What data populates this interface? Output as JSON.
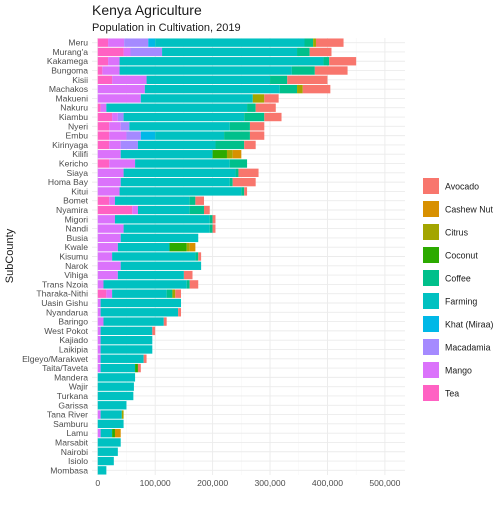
{
  "chart_data": {
    "type": "bar",
    "orientation": "horizontal",
    "stacked": true,
    "title": "Kenya Agriculture",
    "subtitle": "Population in Cultivation, 2019",
    "xlabel": "",
    "ylabel": "SubCounty",
    "xlim": [
      -10000,
      535000
    ],
    "x_ticks": [
      0,
      100000,
      200000,
      300000,
      400000,
      500000
    ],
    "x_tick_labels": [
      "0",
      "100,000",
      "200,000",
      "300,000",
      "400,000",
      "500,000"
    ],
    "grid": true,
    "legend_position": "right",
    "series": [
      {
        "name": "Tea",
        "color": "#FF61C3"
      },
      {
        "name": "Mango",
        "color": "#DB72FB"
      },
      {
        "name": "Macadamia",
        "color": "#A58AFF"
      },
      {
        "name": "Khat (Miraa)",
        "color": "#00B8E7"
      },
      {
        "name": "Farming",
        "color": "#00C1C1"
      },
      {
        "name": "Coffee",
        "color": "#00C08B"
      },
      {
        "name": "Coconut",
        "color": "#2CAA00"
      },
      {
        "name": "Citrus",
        "color": "#A3A500"
      },
      {
        "name": "Cashew Nut",
        "color": "#D89000"
      },
      {
        "name": "Avocado",
        "color": "#F8766D"
      }
    ],
    "legend_order": [
      "Avocado",
      "Cashew Nut",
      "Citrus",
      "Coconut",
      "Coffee",
      "Farming",
      "Khat (Miraa)",
      "Macadamia",
      "Mango",
      "Tea"
    ],
    "categories": [
      "Meru",
      "Murang'a",
      "Kakamega",
      "Bungoma",
      "Kisii",
      "Machakos",
      "Makueni",
      "Nakuru",
      "Kiambu",
      "Nyeri",
      "Embu",
      "Kirinyaga",
      "Kilifi",
      "Kericho",
      "Siaya",
      "Homa Bay",
      "Kitui",
      "Bomet",
      "Nyamira",
      "Migori",
      "Nandi",
      "Busia",
      "Kwale",
      "Kisumu",
      "Narok",
      "Vihiga",
      "Trans Nzoia",
      "Tharaka-Nithi",
      "Uasin Gishu",
      "Nyandarua",
      "Baringo",
      "West Pokot",
      "Kajiado",
      "Laikipia",
      "Elgeyo/Marakwet",
      "Taita/Taveta",
      "Mandera",
      "Wajir",
      "Turkana",
      "Garissa",
      "Tana River",
      "Samburu",
      "Lamu",
      "Marsabit",
      "Nairobi",
      "Isiolo",
      "Mombasa"
    ],
    "rows": [
      {
        "Tea": 18000,
        "Mango": 28000,
        "Macadamia": 42000,
        "Khat (Miraa)": 12000,
        "Farming": 260000,
        "Coffee": 15000,
        "Coconut": 0,
        "Citrus": 5000,
        "Cashew Nut": 0,
        "Avocado": 48000
      },
      {
        "Tea": 45000,
        "Mango": 12000,
        "Macadamia": 55000,
        "Khat (Miraa)": 0,
        "Farming": 235000,
        "Coffee": 22000,
        "Coconut": 0,
        "Citrus": 0,
        "Cashew Nut": 0,
        "Avocado": 38000
      },
      {
        "Tea": 18000,
        "Mango": 20000,
        "Macadamia": 0,
        "Khat (Miraa)": 0,
        "Farming": 355000,
        "Coffee": 10000,
        "Coconut": 0,
        "Citrus": 0,
        "Cashew Nut": 0,
        "Avocado": 47000
      },
      {
        "Tea": 8000,
        "Mango": 30000,
        "Macadamia": 0,
        "Khat (Miraa)": 0,
        "Farming": 300000,
        "Coffee": 40000,
        "Coconut": 0,
        "Citrus": 0,
        "Cashew Nut": 0,
        "Avocado": 57000
      },
      {
        "Tea": 25000,
        "Mango": 60000,
        "Macadamia": 0,
        "Khat (Miraa)": 0,
        "Farming": 215000,
        "Coffee": 30000,
        "Coconut": 0,
        "Citrus": 0,
        "Cashew Nut": 0,
        "Avocado": 70000
      },
      {
        "Tea": 0,
        "Mango": 82000,
        "Macadamia": 0,
        "Khat (Miraa)": 0,
        "Farming": 235000,
        "Coffee": 30000,
        "Coconut": 0,
        "Citrus": 10000,
        "Cashew Nut": 0,
        "Avocado": 48000
      },
      {
        "Tea": 0,
        "Mango": 75000,
        "Macadamia": 0,
        "Khat (Miraa)": 0,
        "Farming": 195000,
        "Coffee": 0,
        "Coconut": 0,
        "Citrus": 20000,
        "Cashew Nut": 0,
        "Avocado": 25000
      },
      {
        "Tea": 5000,
        "Mango": 10000,
        "Macadamia": 0,
        "Khat (Miraa)": 0,
        "Farming": 245000,
        "Coffee": 15000,
        "Coconut": 0,
        "Citrus": 0,
        "Cashew Nut": 0,
        "Avocado": 35000
      },
      {
        "Tea": 25000,
        "Mango": 10000,
        "Macadamia": 10000,
        "Khat (Miraa)": 0,
        "Farming": 210000,
        "Coffee": 35000,
        "Coconut": 0,
        "Citrus": 0,
        "Cashew Nut": 0,
        "Avocado": 30000
      },
      {
        "Tea": 20000,
        "Mango": 20000,
        "Macadamia": 15000,
        "Khat (Miraa)": 0,
        "Farming": 175000,
        "Coffee": 35000,
        "Coconut": 0,
        "Citrus": 0,
        "Cashew Nut": 0,
        "Avocado": 25000
      },
      {
        "Tea": 20000,
        "Mango": 30000,
        "Macadamia": 25000,
        "Khat (Miraa)": 25000,
        "Farming": 120000,
        "Coffee": 45000,
        "Coconut": 0,
        "Citrus": 0,
        "Cashew Nut": 0,
        "Avocado": 25000
      },
      {
        "Tea": 20000,
        "Mango": 20000,
        "Macadamia": 30000,
        "Khat (Miraa)": 0,
        "Farming": 135000,
        "Coffee": 50000,
        "Coconut": 0,
        "Citrus": 0,
        "Cashew Nut": 0,
        "Avocado": 20000
      },
      {
        "Tea": 0,
        "Mango": 40000,
        "Macadamia": 0,
        "Khat (Miraa)": 0,
        "Farming": 160000,
        "Coffee": 0,
        "Coconut": 25000,
        "Citrus": 10000,
        "Cashew Nut": 15000,
        "Avocado": 0
      },
      {
        "Tea": 20000,
        "Mango": 45000,
        "Macadamia": 0,
        "Khat (Miraa)": 0,
        "Farming": 165000,
        "Coffee": 30000,
        "Coconut": 0,
        "Citrus": 0,
        "Cashew Nut": 0,
        "Avocado": 0
      },
      {
        "Tea": 0,
        "Mango": 45000,
        "Macadamia": 0,
        "Khat (Miraa)": 0,
        "Farming": 195000,
        "Coffee": 5000,
        "Coconut": 0,
        "Citrus": 0,
        "Cashew Nut": 0,
        "Avocado": 35000
      },
      {
        "Tea": 0,
        "Mango": 40000,
        "Macadamia": 0,
        "Khat (Miraa)": 0,
        "Farming": 190000,
        "Coffee": 5000,
        "Coconut": 0,
        "Citrus": 0,
        "Cashew Nut": 0,
        "Avocado": 40000
      },
      {
        "Tea": 0,
        "Mango": 38000,
        "Macadamia": 0,
        "Khat (Miraa)": 0,
        "Farming": 212000,
        "Coffee": 5000,
        "Coconut": 0,
        "Citrus": 0,
        "Cashew Nut": 0,
        "Avocado": 5000
      },
      {
        "Tea": 20000,
        "Mango": 10000,
        "Macadamia": 0,
        "Khat (Miraa)": 0,
        "Farming": 130000,
        "Coffee": 10000,
        "Coconut": 0,
        "Citrus": 0,
        "Cashew Nut": 0,
        "Avocado": 15000
      },
      {
        "Tea": 60000,
        "Mango": 10000,
        "Macadamia": 0,
        "Khat (Miraa)": 0,
        "Farming": 90000,
        "Coffee": 25000,
        "Coconut": 0,
        "Citrus": 0,
        "Cashew Nut": 0,
        "Avocado": 10000
      },
      {
        "Tea": 0,
        "Mango": 30000,
        "Macadamia": 0,
        "Khat (Miraa)": 0,
        "Farming": 165000,
        "Coffee": 5000,
        "Coconut": 0,
        "Citrus": 0,
        "Cashew Nut": 0,
        "Avocado": 5000
      },
      {
        "Tea": 0,
        "Mango": 45000,
        "Macadamia": 0,
        "Khat (Miraa)": 0,
        "Farming": 150000,
        "Coffee": 5000,
        "Coconut": 0,
        "Citrus": 0,
        "Cashew Nut": 0,
        "Avocado": 5000
      },
      {
        "Tea": 0,
        "Mango": 40000,
        "Macadamia": 0,
        "Khat (Miraa)": 0,
        "Farming": 135000,
        "Coffee": 0,
        "Coconut": 0,
        "Citrus": 0,
        "Cashew Nut": 0,
        "Avocado": 0
      },
      {
        "Tea": 0,
        "Mango": 35000,
        "Macadamia": 0,
        "Khat (Miraa)": 0,
        "Farming": 90000,
        "Coffee": 0,
        "Coconut": 30000,
        "Citrus": 5000,
        "Cashew Nut": 10000,
        "Avocado": 0
      },
      {
        "Tea": 0,
        "Mango": 25000,
        "Macadamia": 0,
        "Khat (Miraa)": 0,
        "Farming": 145000,
        "Coffee": 5000,
        "Coconut": 0,
        "Citrus": 0,
        "Cashew Nut": 0,
        "Avocado": 5000
      },
      {
        "Tea": 0,
        "Mango": 40000,
        "Macadamia": 0,
        "Khat (Miraa)": 0,
        "Farming": 140000,
        "Coffee": 0,
        "Coconut": 0,
        "Citrus": 0,
        "Cashew Nut": 0,
        "Avocado": 0
      },
      {
        "Tea": 0,
        "Mango": 35000,
        "Macadamia": 0,
        "Khat (Miraa)": 0,
        "Farming": 115000,
        "Coffee": 0,
        "Coconut": 0,
        "Citrus": 0,
        "Cashew Nut": 0,
        "Avocado": 15000
      },
      {
        "Tea": 0,
        "Mango": 10000,
        "Macadamia": 0,
        "Khat (Miraa)": 0,
        "Farming": 145000,
        "Coffee": 5000,
        "Coconut": 0,
        "Citrus": 0,
        "Cashew Nut": 0,
        "Avocado": 15000
      },
      {
        "Tea": 15000,
        "Mango": 10000,
        "Macadamia": 0,
        "Khat (Miraa)": 0,
        "Farming": 95000,
        "Coffee": 10000,
        "Coconut": 0,
        "Citrus": 5000,
        "Cashew Nut": 0,
        "Avocado": 10000
      },
      {
        "Tea": 0,
        "Mango": 5000,
        "Macadamia": 0,
        "Khat (Miraa)": 0,
        "Farming": 140000,
        "Coffee": 0,
        "Coconut": 0,
        "Citrus": 0,
        "Cashew Nut": 0,
        "Avocado": 0
      },
      {
        "Tea": 0,
        "Mango": 5000,
        "Macadamia": 0,
        "Khat (Miraa)": 0,
        "Farming": 135000,
        "Coffee": 0,
        "Coconut": 0,
        "Citrus": 0,
        "Cashew Nut": 0,
        "Avocado": 5000
      },
      {
        "Tea": 0,
        "Mango": 10000,
        "Macadamia": 0,
        "Khat (Miraa)": 0,
        "Farming": 105000,
        "Coffee": 0,
        "Coconut": 0,
        "Citrus": 0,
        "Cashew Nut": 0,
        "Avocado": 5000
      },
      {
        "Tea": 0,
        "Mango": 5000,
        "Macadamia": 0,
        "Khat (Miraa)": 0,
        "Farming": 90000,
        "Coffee": 0,
        "Coconut": 0,
        "Citrus": 0,
        "Cashew Nut": 0,
        "Avocado": 5000
      },
      {
        "Tea": 0,
        "Mango": 5000,
        "Macadamia": 0,
        "Khat (Miraa)": 0,
        "Farming": 90000,
        "Coffee": 0,
        "Coconut": 0,
        "Citrus": 0,
        "Cashew Nut": 0,
        "Avocado": 0
      },
      {
        "Tea": 0,
        "Mango": 5000,
        "Macadamia": 0,
        "Khat (Miraa)": 0,
        "Farming": 90000,
        "Coffee": 0,
        "Coconut": 0,
        "Citrus": 0,
        "Cashew Nut": 0,
        "Avocado": 0
      },
      {
        "Tea": 0,
        "Mango": 5000,
        "Macadamia": 0,
        "Khat (Miraa)": 0,
        "Farming": 75000,
        "Coffee": 0,
        "Coconut": 0,
        "Citrus": 0,
        "Cashew Nut": 0,
        "Avocado": 5000
      },
      {
        "Tea": 0,
        "Mango": 5000,
        "Macadamia": 0,
        "Khat (Miraa)": 0,
        "Farming": 60000,
        "Coffee": 0,
        "Coconut": 5000,
        "Citrus": 0,
        "Cashew Nut": 0,
        "Avocado": 5000
      },
      {
        "Tea": 0,
        "Mango": 0,
        "Macadamia": 0,
        "Khat (Miraa)": 0,
        "Farming": 65000,
        "Coffee": 0,
        "Coconut": 0,
        "Citrus": 0,
        "Cashew Nut": 0,
        "Avocado": 0
      },
      {
        "Tea": 0,
        "Mango": 0,
        "Macadamia": 0,
        "Khat (Miraa)": 0,
        "Farming": 63000,
        "Coffee": 0,
        "Coconut": 0,
        "Citrus": 0,
        "Cashew Nut": 0,
        "Avocado": 0
      },
      {
        "Tea": 0,
        "Mango": 0,
        "Macadamia": 0,
        "Khat (Miraa)": 0,
        "Farming": 62000,
        "Coffee": 0,
        "Coconut": 0,
        "Citrus": 0,
        "Cashew Nut": 0,
        "Avocado": 0
      },
      {
        "Tea": 0,
        "Mango": 0,
        "Macadamia": 0,
        "Khat (Miraa)": 0,
        "Farming": 50000,
        "Coffee": 0,
        "Coconut": 0,
        "Citrus": 0,
        "Cashew Nut": 0,
        "Avocado": 0
      },
      {
        "Tea": 0,
        "Mango": 5000,
        "Macadamia": 0,
        "Khat (Miraa)": 0,
        "Farming": 37000,
        "Coffee": 0,
        "Coconut": 0,
        "Citrus": 3000,
        "Cashew Nut": 0,
        "Avocado": 0
      },
      {
        "Tea": 0,
        "Mango": 0,
        "Macadamia": 0,
        "Khat (Miraa)": 0,
        "Farming": 45000,
        "Coffee": 0,
        "Coconut": 0,
        "Citrus": 0,
        "Cashew Nut": 0,
        "Avocado": 0
      },
      {
        "Tea": 0,
        "Mango": 5000,
        "Macadamia": 0,
        "Khat (Miraa)": 0,
        "Farming": 20000,
        "Coffee": 0,
        "Coconut": 5000,
        "Citrus": 0,
        "Cashew Nut": 10000,
        "Avocado": 0
      },
      {
        "Tea": 0,
        "Mango": 0,
        "Macadamia": 0,
        "Khat (Miraa)": 0,
        "Farming": 40000,
        "Coffee": 0,
        "Coconut": 0,
        "Citrus": 0,
        "Cashew Nut": 0,
        "Avocado": 0
      },
      {
        "Tea": 0,
        "Mango": 0,
        "Macadamia": 0,
        "Khat (Miraa)": 0,
        "Farming": 35000,
        "Coffee": 0,
        "Coconut": 0,
        "Citrus": 0,
        "Cashew Nut": 0,
        "Avocado": 0
      },
      {
        "Tea": 0,
        "Mango": 0,
        "Macadamia": 0,
        "Khat (Miraa)": 0,
        "Farming": 28000,
        "Coffee": 0,
        "Coconut": 0,
        "Citrus": 0,
        "Cashew Nut": 0,
        "Avocado": 0
      },
      {
        "Tea": 0,
        "Mango": 0,
        "Macadamia": 0,
        "Khat (Miraa)": 0,
        "Farming": 15000,
        "Coffee": 0,
        "Coconut": 0,
        "Citrus": 0,
        "Cashew Nut": 0,
        "Avocado": 0
      }
    ]
  }
}
